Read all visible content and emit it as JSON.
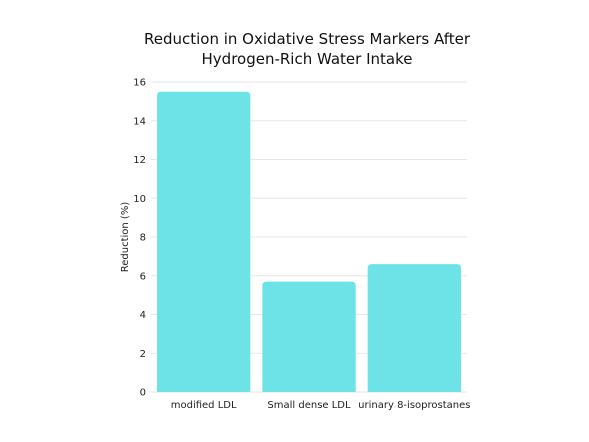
{
  "chart_data": {
    "type": "bar",
    "title_lines": [
      "Reduction in Oxidative Stress Markers After",
      "Hydrogen-Rich Water Intake"
    ],
    "ylabel": "Reduction (%)",
    "xlabel": "",
    "categories": [
      "modified LDL",
      "Small dense LDL",
      "urinary 8-isoprostanes"
    ],
    "values": [
      15.5,
      5.7,
      6.6
    ],
    "ylim": [
      0,
      16
    ],
    "yticks": [
      0,
      2,
      4,
      6,
      8,
      10,
      12,
      14,
      16
    ],
    "grid": true,
    "bar_color": "#6de3e8"
  }
}
